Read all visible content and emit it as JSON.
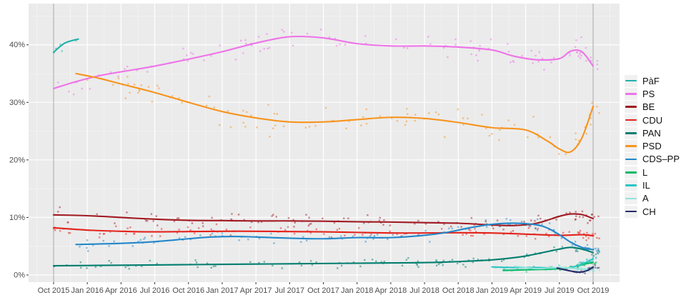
{
  "colors": {
    "page_background": "#ffffff",
    "panel_background": "#EBEBEB",
    "grid_major": "#FFFFFF",
    "grid_minor": "#F5F5F5",
    "axis_text": "#4D4D4D",
    "tick_mark": "#333333",
    "election_line": "#ADADAD"
  },
  "chart_data": {
    "type": "scatter",
    "description": "Portuguese legislative election opinion poll results Oct 2015 - Oct 2019: jittered poll dots with smoothed trend lines per party",
    "title": "",
    "xlabel": "",
    "ylabel": "",
    "x_unit": "months since Oct 2015",
    "ylim": [
      -1.2,
      47.2
    ],
    "xlim_months": [
      -2.2,
      50.4
    ],
    "grid": "major white horizontal/vertical on gray panel, faint minors",
    "legend_position": "right",
    "election_vlines_months": [
      0,
      48
    ],
    "x_ticks": [
      {
        "t": 0,
        "label": "Oct 2015"
      },
      {
        "t": 3,
        "label": "Jan 2016"
      },
      {
        "t": 6,
        "label": "Apr 2016"
      },
      {
        "t": 9,
        "label": "Jul 2016"
      },
      {
        "t": 12,
        "label": "Oct 2016"
      },
      {
        "t": 15,
        "label": "Jan 2017"
      },
      {
        "t": 18,
        "label": "Apr 2017"
      },
      {
        "t": 21,
        "label": "Jul 2017"
      },
      {
        "t": 24,
        "label": "Oct 2017"
      },
      {
        "t": 27,
        "label": "Jan 2018"
      },
      {
        "t": 30,
        "label": "Apr 2018"
      },
      {
        "t": 33,
        "label": "Jul 2018"
      },
      {
        "t": 36,
        "label": "Oct 2018"
      },
      {
        "t": 39,
        "label": "Jan 2019"
      },
      {
        "t": 42,
        "label": "Apr 2019"
      },
      {
        "t": 45,
        "label": "Jul 2019"
      },
      {
        "t": 48,
        "label": "Oct 2019"
      }
    ],
    "y_ticks": [
      {
        "v": 0,
        "label": "0%"
      },
      {
        "v": 10,
        "label": "10%"
      },
      {
        "v": 20,
        "label": "20%"
      },
      {
        "v": 30,
        "label": "30%"
      },
      {
        "v": 40,
        "label": "40%"
      }
    ],
    "series": [
      {
        "name": "PàF",
        "color": "#20B2AA",
        "spread": 1.0,
        "points": [
          [
            0,
            38.7
          ],
          [
            1,
            40.3
          ],
          [
            2.2,
            41.0
          ]
        ]
      },
      {
        "name": "PS",
        "color": "#EE73E8",
        "spread": 2.3,
        "points": [
          [
            0,
            32.4
          ],
          [
            2,
            33.6
          ],
          [
            4,
            34.6
          ],
          [
            6,
            35.3
          ],
          [
            9,
            36.3
          ],
          [
            12,
            37.5
          ],
          [
            15,
            38.8
          ],
          [
            18,
            40.3
          ],
          [
            21,
            41.4
          ],
          [
            24,
            41.2
          ],
          [
            27,
            40.2
          ],
          [
            30,
            39.8
          ],
          [
            33,
            39.8
          ],
          [
            36,
            39.6
          ],
          [
            39,
            39.1
          ],
          [
            41,
            38.0
          ],
          [
            43,
            37.4
          ],
          [
            45,
            37.6
          ],
          [
            46,
            38.9
          ],
          [
            47,
            38.8
          ],
          [
            48,
            36.3
          ]
        ]
      },
      {
        "name": "BE",
        "color": "#A11A22",
        "spread": 1.3,
        "points": [
          [
            0,
            10.45
          ],
          [
            3,
            10.3
          ],
          [
            6,
            10.0
          ],
          [
            9,
            9.7
          ],
          [
            12,
            9.5
          ],
          [
            15,
            9.45
          ],
          [
            18,
            9.4
          ],
          [
            21,
            9.4
          ],
          [
            24,
            9.35
          ],
          [
            27,
            9.25
          ],
          [
            30,
            9.2
          ],
          [
            33,
            9.1
          ],
          [
            36,
            9.0
          ],
          [
            39,
            8.7
          ],
          [
            41,
            8.6
          ],
          [
            43,
            9.0
          ],
          [
            45,
            10.2
          ],
          [
            46,
            10.6
          ],
          [
            47,
            10.5
          ],
          [
            48,
            9.8
          ]
        ]
      },
      {
        "name": "CDU",
        "color": "#E3221B",
        "spread": 1.0,
        "points": [
          [
            0,
            8.2
          ],
          [
            3,
            7.8
          ],
          [
            6,
            7.6
          ],
          [
            9,
            7.5
          ],
          [
            12,
            7.55
          ],
          [
            15,
            7.6
          ],
          [
            18,
            7.6
          ],
          [
            21,
            7.55
          ],
          [
            24,
            7.5
          ],
          [
            27,
            7.4
          ],
          [
            30,
            7.3
          ],
          [
            33,
            7.3
          ],
          [
            36,
            7.35
          ],
          [
            39,
            7.3
          ],
          [
            42,
            7.1
          ],
          [
            45,
            6.9
          ],
          [
            47,
            7.0
          ],
          [
            48,
            6.8
          ]
        ]
      },
      {
        "name": "PAN",
        "color": "#027E6F",
        "spread": 0.8,
        "points": [
          [
            0,
            1.6
          ],
          [
            6,
            1.7
          ],
          [
            12,
            1.8
          ],
          [
            18,
            1.9
          ],
          [
            24,
            2.0
          ],
          [
            30,
            2.1
          ],
          [
            34,
            2.2
          ],
          [
            38,
            2.5
          ],
          [
            40,
            2.8
          ],
          [
            42,
            3.3
          ],
          [
            44,
            4.1
          ],
          [
            45,
            4.5
          ],
          [
            46,
            4.8
          ],
          [
            47,
            4.5
          ],
          [
            48,
            3.9
          ]
        ]
      },
      {
        "name": "PSD",
        "color": "#F7941D",
        "spread": 2.7,
        "points": [
          [
            2,
            35.0
          ],
          [
            4,
            34.2
          ],
          [
            6,
            33.2
          ],
          [
            9,
            31.7
          ],
          [
            12,
            30.0
          ],
          [
            15,
            28.4
          ],
          [
            18,
            27.3
          ],
          [
            21,
            26.6
          ],
          [
            24,
            26.6
          ],
          [
            27,
            27.0
          ],
          [
            30,
            27.4
          ],
          [
            33,
            27.2
          ],
          [
            36,
            26.5
          ],
          [
            39,
            25.6
          ],
          [
            42,
            25.2
          ],
          [
            44,
            23.2
          ],
          [
            45,
            21.9
          ],
          [
            46,
            21.4
          ],
          [
            47,
            23.8
          ],
          [
            48,
            29.3
          ]
        ]
      },
      {
        "name": "CDS–PP",
        "color": "#2287C9",
        "spread": 1.0,
        "points": [
          [
            2,
            5.3
          ],
          [
            6,
            5.5
          ],
          [
            9,
            5.8
          ],
          [
            12,
            6.3
          ],
          [
            14,
            6.6
          ],
          [
            16,
            6.7
          ],
          [
            18,
            6.6
          ],
          [
            21,
            6.4
          ],
          [
            24,
            6.3
          ],
          [
            27,
            6.5
          ],
          [
            30,
            6.5
          ],
          [
            33,
            6.9
          ],
          [
            35,
            7.4
          ],
          [
            37,
            8.2
          ],
          [
            39,
            8.8
          ],
          [
            41,
            9.0
          ],
          [
            43,
            8.7
          ],
          [
            44,
            8.1
          ],
          [
            45,
            7.0
          ],
          [
            46,
            5.7
          ],
          [
            47,
            4.8
          ],
          [
            48,
            4.4
          ]
        ]
      },
      {
        "name": "L",
        "color": "#00BA63",
        "spread": 0.5,
        "points": [
          [
            40,
            0.8
          ],
          [
            42,
            0.9
          ],
          [
            44,
            1.0
          ],
          [
            45,
            1.1
          ],
          [
            46,
            1.3
          ],
          [
            47,
            1.8
          ],
          [
            48,
            2.2
          ]
        ]
      },
      {
        "name": "IL",
        "color": "#2BC6C6",
        "spread": 0.6,
        "points": [
          [
            39,
            1.4
          ],
          [
            41,
            1.3
          ],
          [
            43,
            1.3
          ],
          [
            45,
            1.2
          ],
          [
            46,
            1.3
          ],
          [
            47,
            1.9
          ],
          [
            48,
            2.8
          ]
        ]
      },
      {
        "name": "A",
        "color": "#93E2DA",
        "spread": 0.5,
        "points": [
          [
            41,
            1.5
          ],
          [
            42,
            1.3
          ],
          [
            43,
            1.1
          ],
          [
            44,
            1.2
          ],
          [
            45,
            1.3
          ],
          [
            46,
            1.2
          ],
          [
            47,
            1.0
          ],
          [
            48,
            0.9
          ]
        ]
      },
      {
        "name": "CH",
        "color": "#262C68",
        "spread": 0.5,
        "points": [
          [
            44.8,
            1.2
          ],
          [
            46,
            0.7
          ],
          [
            46.8,
            0.5
          ],
          [
            47.5,
            0.8
          ],
          [
            48,
            1.4
          ]
        ]
      }
    ]
  },
  "legend": {
    "items": [
      "PàF",
      "PS",
      "BE",
      "CDU",
      "PAN",
      "PSD",
      "CDS–PP",
      "L",
      "IL",
      "A",
      "CH"
    ]
  }
}
